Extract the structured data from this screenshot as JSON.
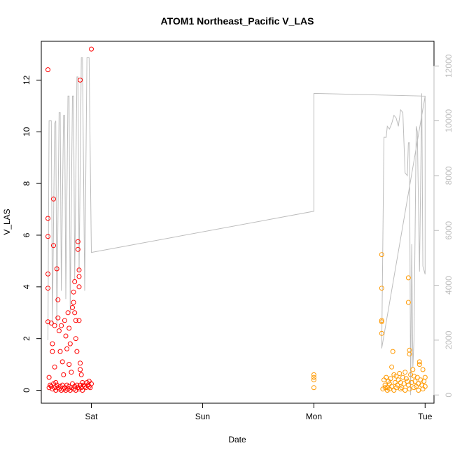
{
  "chart_data": {
    "type": "scatter",
    "title": "ATOM1 Northeast_Pacific V_LAS",
    "xlabel": "Date",
    "ylabel": "V_LAS",
    "xlim_days": [
      -0.45,
      3.08
    ],
    "ylim": [
      -0.5,
      13.5
    ],
    "y2lim": [
      -300,
      12900
    ],
    "x_ticks": [
      {
        "label": "Sat",
        "value": 0
      },
      {
        "label": "Sun",
        "value": 1
      },
      {
        "label": "Mon",
        "value": 2
      },
      {
        "label": "Tue",
        "value": 3
      }
    ],
    "y_ticks": [
      0,
      2,
      4,
      6,
      8,
      10,
      12
    ],
    "y2_ticks": [
      0,
      2000,
      4000,
      6000,
      8000,
      10000,
      12000
    ],
    "grid": false,
    "legend": "none",
    "colors": {
      "series_a": "#ff0000",
      "series_b": "#ff9900",
      "depth_line": "#bdbdbd",
      "right_axis": "#bdbdbd"
    },
    "series": [
      {
        "color": "#ff0000",
        "points": [
          [
            -0.39,
            12.4
          ],
          [
            -0.39,
            6.65
          ],
          [
            -0.39,
            5.95
          ],
          [
            -0.39,
            4.5
          ],
          [
            -0.39,
            3.95
          ],
          [
            -0.39,
            2.65
          ],
          [
            -0.38,
            0.5
          ],
          [
            -0.38,
            0.1
          ],
          [
            -0.36,
            2.6
          ],
          [
            -0.35,
            1.8
          ],
          [
            -0.35,
            1.5
          ],
          [
            -0.34,
            7.4
          ],
          [
            -0.34,
            5.6
          ],
          [
            -0.33,
            2.5
          ],
          [
            -0.33,
            0.9
          ],
          [
            -0.32,
            0.3
          ],
          [
            -0.31,
            4.7
          ],
          [
            -0.3,
            3.5
          ],
          [
            -0.3,
            2.8
          ],
          [
            -0.29,
            2.3
          ],
          [
            -0.28,
            1.5
          ],
          [
            -0.27,
            2.5
          ],
          [
            -0.26,
            1.1
          ],
          [
            -0.25,
            0.6
          ],
          [
            -0.24,
            2.7
          ],
          [
            -0.23,
            2.1
          ],
          [
            -0.22,
            1.6
          ],
          [
            -0.21,
            3.0
          ],
          [
            -0.2,
            2.4
          ],
          [
            -0.2,
            1.0
          ],
          [
            -0.19,
            1.8
          ],
          [
            -0.18,
            0.7
          ],
          [
            -0.17,
            3.2
          ],
          [
            -0.16,
            3.8
          ],
          [
            -0.16,
            3.4
          ],
          [
            -0.15,
            3.0
          ],
          [
            -0.15,
            4.2
          ],
          [
            -0.14,
            2.7
          ],
          [
            -0.14,
            2.0
          ],
          [
            -0.13,
            1.5
          ],
          [
            -0.12,
            5.75
          ],
          [
            -0.12,
            5.45
          ],
          [
            -0.11,
            4.65
          ],
          [
            -0.11,
            4.4
          ],
          [
            -0.11,
            4.0
          ],
          [
            -0.11,
            2.7
          ],
          [
            -0.1,
            1.05
          ],
          [
            -0.1,
            0.8
          ],
          [
            -0.1,
            12.0
          ],
          [
            -0.09,
            0.6
          ],
          [
            -0.08,
            0.3
          ],
          [
            -0.07,
            0.2
          ],
          [
            -0.06,
            0.15
          ],
          [
            -0.05,
            0.1
          ],
          [
            -0.04,
            0.3
          ],
          [
            -0.03,
            0.2
          ],
          [
            -0.02,
            0.15
          ],
          [
            -0.01,
            0.1
          ],
          [
            0.0,
            0.25
          ],
          [
            -0.02,
            0.35
          ],
          [
            0.0,
            13.2
          ],
          [
            -0.37,
            0.2
          ],
          [
            -0.36,
            0.15
          ],
          [
            -0.35,
            0.05
          ],
          [
            -0.34,
            0.25
          ],
          [
            -0.33,
            0.1
          ],
          [
            -0.32,
            0.0
          ],
          [
            -0.31,
            0.2
          ],
          [
            -0.3,
            0.1
          ],
          [
            -0.29,
            0.05
          ],
          [
            -0.28,
            0.15
          ],
          [
            -0.27,
            0.0
          ],
          [
            -0.26,
            0.2
          ],
          [
            -0.25,
            0.05
          ],
          [
            -0.24,
            0.1
          ],
          [
            -0.23,
            0.0
          ],
          [
            -0.22,
            0.2
          ],
          [
            -0.21,
            0.05
          ],
          [
            -0.2,
            0.15
          ],
          [
            -0.19,
            0.0
          ],
          [
            -0.18,
            0.1
          ],
          [
            -0.17,
            0.25
          ],
          [
            -0.16,
            0.05
          ],
          [
            -0.15,
            0.15
          ],
          [
            -0.14,
            0.0
          ],
          [
            -0.13,
            0.2
          ],
          [
            -0.12,
            0.1
          ],
          [
            -0.11,
            0.05
          ],
          [
            -0.1,
            0.2
          ],
          [
            -0.09,
            0.1
          ],
          [
            -0.08,
            0.0
          ]
        ]
      },
      {
        "color": "#ff9900",
        "points": [
          [
            2.0,
            0.6
          ],
          [
            2.0,
            0.5
          ],
          [
            2.0,
            0.4
          ],
          [
            2.0,
            0.1
          ],
          [
            2.61,
            5.25
          ],
          [
            2.61,
            3.95
          ],
          [
            2.61,
            2.7
          ],
          [
            2.61,
            2.65
          ],
          [
            2.61,
            2.2
          ],
          [
            2.63,
            0.4
          ],
          [
            2.64,
            0.2
          ],
          [
            2.65,
            0.5
          ],
          [
            2.66,
            0.1
          ],
          [
            2.67,
            0.35
          ],
          [
            2.68,
            0.25
          ],
          [
            2.69,
            0.45
          ],
          [
            2.7,
            0.15
          ],
          [
            2.7,
            0.9
          ],
          [
            2.71,
            1.5
          ],
          [
            2.72,
            0.6
          ],
          [
            2.73,
            0.3
          ],
          [
            2.74,
            0.55
          ],
          [
            2.75,
            0.2
          ],
          [
            2.76,
            0.4
          ],
          [
            2.77,
            0.65
          ],
          [
            2.78,
            0.3
          ],
          [
            2.79,
            0.1
          ],
          [
            2.8,
            0.5
          ],
          [
            2.81,
            0.25
          ],
          [
            2.82,
            0.7
          ],
          [
            2.83,
            0.45
          ],
          [
            2.84,
            0.35
          ],
          [
            2.85,
            0.2
          ],
          [
            2.85,
            4.35
          ],
          [
            2.85,
            3.4
          ],
          [
            2.86,
            1.55
          ],
          [
            2.86,
            1.4
          ],
          [
            2.87,
            0.6
          ],
          [
            2.88,
            0.3
          ],
          [
            2.89,
            0.8
          ],
          [
            2.9,
            0.55
          ],
          [
            2.91,
            0.35
          ],
          [
            2.92,
            0.15
          ],
          [
            2.93,
            0.5
          ],
          [
            2.94,
            0.25
          ],
          [
            2.95,
            1.1
          ],
          [
            2.95,
            1.0
          ],
          [
            2.96,
            0.4
          ],
          [
            2.97,
            0.2
          ],
          [
            2.98,
            0.8
          ],
          [
            2.99,
            0.35
          ],
          [
            3.0,
            0.5
          ],
          [
            3.0,
            0.15
          ],
          [
            2.62,
            0.05
          ],
          [
            2.64,
            0.1
          ],
          [
            2.66,
            0.0
          ],
          [
            2.68,
            0.05
          ],
          [
            2.72,
            0.0
          ],
          [
            2.74,
            0.1
          ],
          [
            2.78,
            0.05
          ],
          [
            2.82,
            0.0
          ],
          [
            2.86,
            0.05
          ],
          [
            2.9,
            0.1
          ],
          [
            2.94,
            0.0
          ],
          [
            2.98,
            0.05
          ]
        ]
      }
    ],
    "depth_line": {
      "points": [
        [
          -0.39,
          2000
        ],
        [
          -0.38,
          10000
        ],
        [
          -0.36,
          10000
        ],
        [
          -0.35,
          2600
        ],
        [
          -0.33,
          9900
        ],
        [
          -0.32,
          10000
        ],
        [
          -0.31,
          2500
        ],
        [
          -0.29,
          10300
        ],
        [
          -0.28,
          10300
        ],
        [
          -0.27,
          3800
        ],
        [
          -0.25,
          10200
        ],
        [
          -0.24,
          10200
        ],
        [
          -0.23,
          3500
        ],
        [
          -0.21,
          10900
        ],
        [
          -0.2,
          10900
        ],
        [
          -0.19,
          3000
        ],
        [
          -0.17,
          10900
        ],
        [
          -0.16,
          10900
        ],
        [
          -0.15,
          4200
        ],
        [
          -0.13,
          11600
        ],
        [
          -0.12,
          11600
        ],
        [
          -0.11,
          4500
        ],
        [
          -0.09,
          12300
        ],
        [
          -0.08,
          12300
        ],
        [
          -0.06,
          3800
        ],
        [
          -0.04,
          12300
        ],
        [
          -0.02,
          12300
        ],
        [
          0.0,
          5200
        ],
        [
          2.0,
          6700
        ],
        [
          2.0,
          7200
        ],
        [
          2.0,
          11000
        ],
        [
          3.0,
          10900
        ],
        [
          2.61,
          1700
        ],
        [
          2.63,
          9400
        ],
        [
          2.65,
          9400
        ],
        [
          2.66,
          9800
        ],
        [
          2.68,
          9700
        ],
        [
          2.7,
          9900
        ],
        [
          2.72,
          10200
        ],
        [
          2.74,
          10100
        ],
        [
          2.76,
          9800
        ],
        [
          2.78,
          10400
        ],
        [
          2.8,
          10300
        ],
        [
          2.82,
          8100
        ],
        [
          2.84,
          8000
        ],
        [
          2.85,
          9200
        ],
        [
          2.86,
          9200
        ],
        [
          2.87,
          0
        ],
        [
          2.88,
          5500
        ],
        [
          2.89,
          1000
        ],
        [
          2.9,
          2000
        ],
        [
          2.92,
          9800
        ],
        [
          2.93,
          9600
        ],
        [
          2.95,
          4500
        ],
        [
          2.97,
          11000
        ],
        [
          2.98,
          4700
        ],
        [
          3.0,
          4400
        ],
        [
          3.0,
          10900
        ]
      ]
    }
  }
}
